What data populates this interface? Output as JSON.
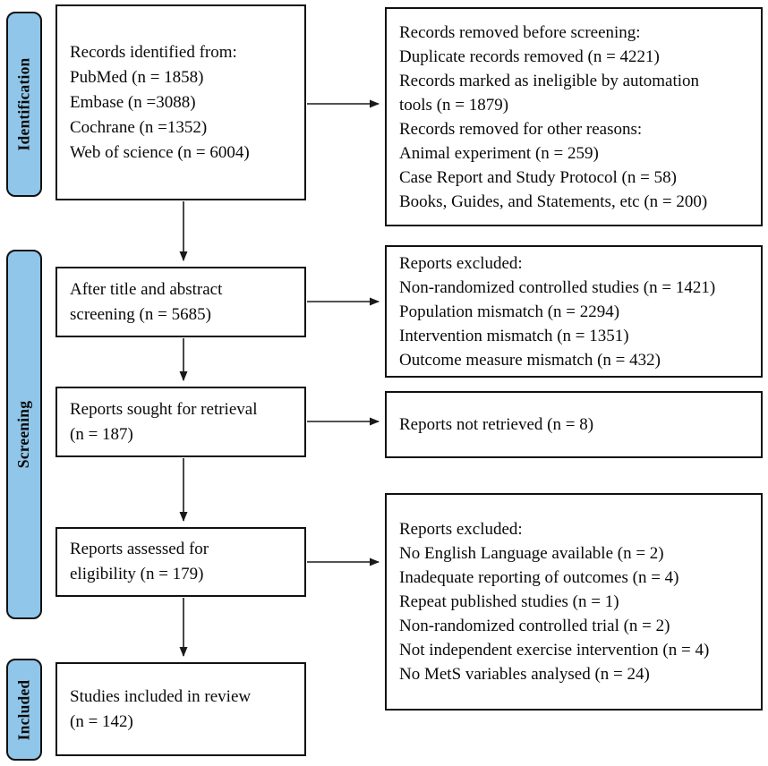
{
  "colors": {
    "stage_fill": "#90c6e9",
    "box_border": "#111111",
    "background": "#ffffff"
  },
  "stages": {
    "identification": "Identification",
    "screening": "Screening",
    "included": "Included"
  },
  "boxes": {
    "records_identified": {
      "lines": [
        "Records identified from:",
        "PubMed (n = 1858)",
        "Embase (n =3088)",
        "Cochrane (n =1352)",
        "Web of science (n = 6004)"
      ]
    },
    "records_removed": {
      "lines": [
        "Records removed before screening:",
        "Duplicate records removed (n = 4221)",
        "Records marked as ineligible by automation",
        "tools (n = 1879)",
        "Records removed for other reasons:",
        "Animal experiment (n = 259)",
        "Case Report and Study Protocol (n = 58)",
        "Books, Guides, and Statements, etc (n = 200)"
      ]
    },
    "title_abstract_screening": {
      "lines": [
        "After title and abstract",
        "screening (n = 5685)"
      ]
    },
    "reports_excluded_screening": {
      "lines": [
        "Reports excluded:",
        "Non-randomized controlled studies (n = 1421)",
        "Population mismatch (n = 2294)",
        "Intervention mismatch (n = 1351)",
        "Outcome measure mismatch (n = 432)"
      ]
    },
    "reports_sought": {
      "lines": [
        "Reports sought for retrieval",
        "(n = 187)"
      ]
    },
    "reports_not_retrieved": {
      "lines": [
        "Reports not retrieved (n = 8)"
      ]
    },
    "reports_assessed": {
      "lines": [
        "Reports assessed for",
        "eligibility (n = 179)"
      ]
    },
    "reports_excluded_eligibility": {
      "lines": [
        "Reports excluded:",
        "No English Language available (n = 2)",
        "Inadequate reporting of outcomes (n = 4)",
        "Repeat published studies (n = 1)",
        "Non-randomized controlled trial (n = 2)",
        "Not independent exercise intervention (n = 4)",
        "No MetS variables analysed (n = 24)"
      ]
    },
    "studies_included": {
      "lines": [
        "Studies included in review",
        "(n = 142)"
      ]
    }
  }
}
